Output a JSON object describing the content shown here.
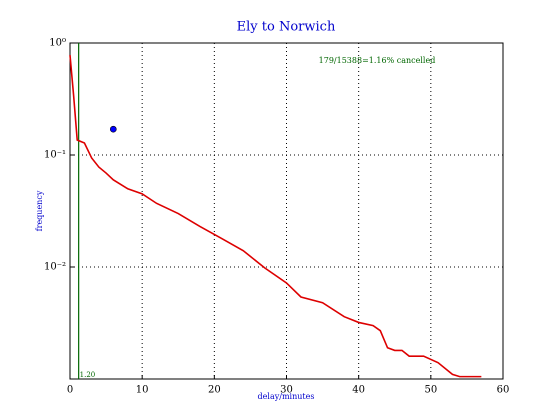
{
  "chart_data": {
    "type": "line",
    "title": "Ely to Norwich",
    "x_label": "delay/minutes",
    "y_label": "frequency",
    "annotation": "179/15388=1.16% cancelled",
    "series": [
      {
        "color": "#dd0000",
        "x": [
          0,
          0.5,
          1,
          2,
          3,
          4,
          5,
          6,
          8,
          10,
          12,
          15,
          18,
          21,
          24,
          27,
          30,
          32,
          35,
          38,
          40,
          42,
          43,
          44,
          45,
          46,
          47,
          49,
          51,
          53,
          54,
          57
        ],
        "values": [
          0.78,
          0.34,
          0.136,
          0.128,
          0.094,
          0.078,
          0.069,
          0.06,
          0.05,
          0.045,
          0.037,
          0.03,
          0.023,
          0.018,
          0.014,
          0.0098,
          0.0072,
          0.0054,
          0.0048,
          0.0036,
          0.0032,
          0.003,
          0.0027,
          0.0019,
          0.0018,
          0.0018,
          0.0016,
          0.0016,
          0.0014,
          0.0011,
          0.00105,
          0.00105
        ]
      }
    ],
    "points": [
      {
        "x": 6,
        "y": 0.17,
        "color": "#0000ff"
      }
    ],
    "vline": {
      "x": {
        "value": 1.2,
        "label": "1.20"
      },
      "color": "#006600"
    },
    "xlim": [
      0,
      60
    ],
    "xticks": [
      0,
      10,
      20,
      30,
      40,
      50,
      60
    ],
    "ylim": [
      0.001,
      1
    ],
    "ylog": true,
    "yticks": [
      {
        "value": 1,
        "label": "10⁰"
      },
      {
        "value": 0.1,
        "label": "10⁻¹"
      },
      {
        "value": 0.01,
        "label": "10⁻²"
      }
    ],
    "grid": true
  }
}
